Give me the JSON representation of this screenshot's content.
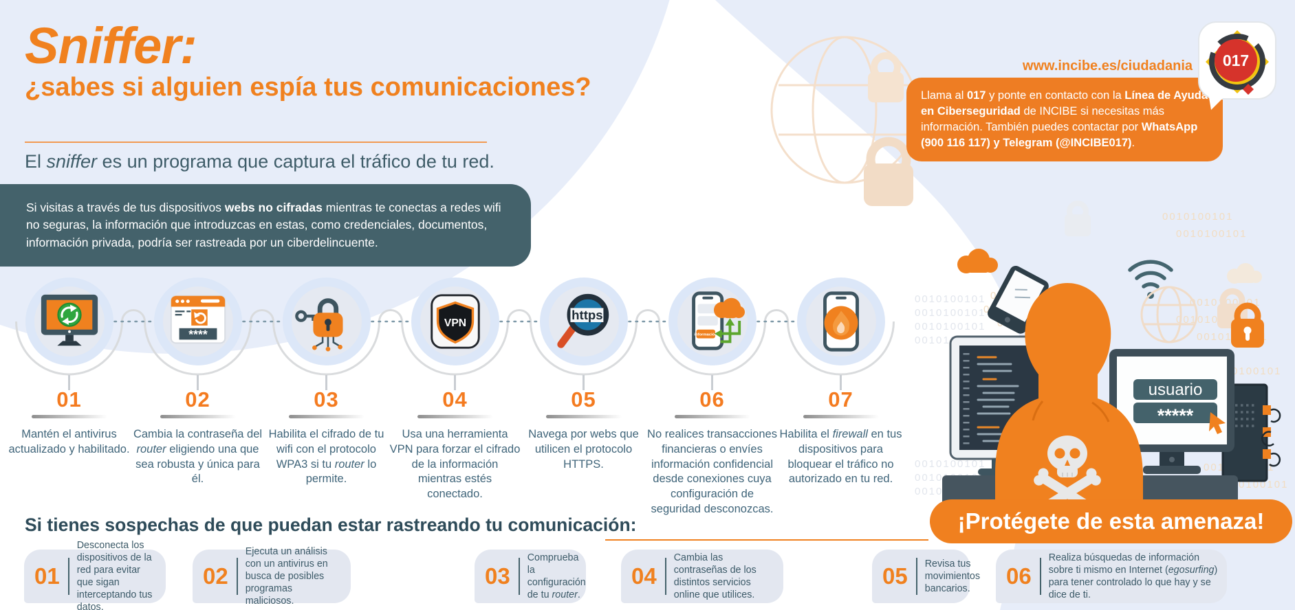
{
  "colors": {
    "orange": "#F0811F",
    "orange_box": "#EE7D23",
    "dark_teal": "#44626B",
    "text_teal": "#3F6479",
    "light_blue": "#E7EDF9",
    "badge_red": "#D6332B",
    "badge_yellow": "#F2C410"
  },
  "header": {
    "title": "Sniffer:",
    "subtitle": "¿sabes si alguien espía tus comunicaciones?",
    "lead": [
      {
        "t": "El "
      },
      {
        "t": "sniffer",
        "i": 1
      },
      {
        "t": " es un programa que captura el tráfico de tu red."
      }
    ]
  },
  "top_right": {
    "url": "www.incibe.es/ciudadania",
    "badge": "017",
    "contact": [
      {
        "t": "Llama al "
      },
      {
        "t": "017",
        "b": 1
      },
      {
        "t": " y ponte en contacto con la "
      },
      {
        "t": "Línea de Ayuda en Ciberseguridad",
        "b": 1
      },
      {
        "t": " de INCIBE si necesitas más información. También puedes contactar por "
      },
      {
        "t": "WhatsApp (900 116 117) y Telegram (@INCIBE017)",
        "b": 1
      },
      {
        "t": "."
      }
    ]
  },
  "warning": [
    {
      "t": "Si visitas a través de tus dispositivos "
    },
    {
      "t": "webs no cifradas",
      "b": 1
    },
    {
      "t": " mientras te conectas a redes wifi no seguras, la información que introduzcas en estas, como credenciales, documentos, información privada, podría ser rastreada por un ciberdelincuente."
    }
  ],
  "icon_labels": {
    "password_mask": "****",
    "vpn": "VPN",
    "https": "https",
    "info_chip": "información"
  },
  "steps": [
    {
      "number": "01",
      "icon": "antivirus-monitor-icon",
      "text": [
        {
          "t": "Mantén el antivirus actualizado y habilitado."
        }
      ]
    },
    {
      "number": "02",
      "icon": "router-password-icon",
      "text": [
        {
          "t": "Cambia la contraseña del "
        },
        {
          "t": "router",
          "i": 1
        },
        {
          "t": " eligiendo una que sea robusta y única para él."
        }
      ]
    },
    {
      "number": "03",
      "icon": "wifi-encryption-lock-icon",
      "text": [
        {
          "t": "Habilita el cifrado de tu wifi con el protocolo WPA3 si tu "
        },
        {
          "t": "router",
          "i": 1
        },
        {
          "t": " lo permite."
        }
      ]
    },
    {
      "number": "04",
      "icon": "vpn-shield-icon",
      "text": [
        {
          "t": "Usa una herramienta VPN para forzar el cifrado de la información mientras estés conectado."
        }
      ]
    },
    {
      "number": "05",
      "icon": "https-magnifier-icon",
      "text": [
        {
          "t": "Navega por webs que utilicen el protocolo HTTPS."
        }
      ]
    },
    {
      "number": "06",
      "icon": "phone-cloud-transfer-icon",
      "text": [
        {
          "t": "No realices transacciones financieras o envíes información confidencial desde conexiones cuya configuración de seguridad desconozcas."
        }
      ]
    },
    {
      "number": "07",
      "icon": "firewall-phone-icon",
      "text": [
        {
          "t": "Habilita el "
        },
        {
          "t": "firewall",
          "i": 1
        },
        {
          "t": " en tus dispositivos para bloquear el tráfico no autorizado en tu red."
        }
      ]
    }
  ],
  "illustration": {
    "username_value": "usuario",
    "password_value": "*****",
    "binary": "0010100101",
    "banner": "¡Protégete de esta amenaza!"
  },
  "suspects": {
    "heading": "Si tienes sospechas de que puedan estar rastreando tu comunicación:",
    "items": [
      {
        "number": "01",
        "text": [
          {
            "t": "Desconecta los dispositivos de la red para evitar que sigan interceptando tus datos."
          }
        ]
      },
      {
        "number": "02",
        "text": [
          {
            "t": "Ejecuta un análisis con un antivirus en busca de posibles programas maliciosos."
          }
        ]
      },
      {
        "number": "03",
        "text": [
          {
            "t": "Comprueba la configuración de tu "
          },
          {
            "t": "router",
            "i": 1
          },
          {
            "t": "."
          }
        ]
      },
      {
        "number": "04",
        "text": [
          {
            "t": "Cambia las contraseñas de los distintos servicios online que utilices."
          }
        ]
      },
      {
        "number": "05",
        "text": [
          {
            "t": "Revisa tus movimientos bancarios."
          }
        ]
      },
      {
        "number": "06",
        "text": [
          {
            "t": "Realiza búsquedas de información sobre ti mismo en Internet ("
          },
          {
            "t": "egosurfing",
            "i": 1
          },
          {
            "t": ") para tener controlado lo que hay y se dice de ti."
          }
        ]
      }
    ]
  }
}
